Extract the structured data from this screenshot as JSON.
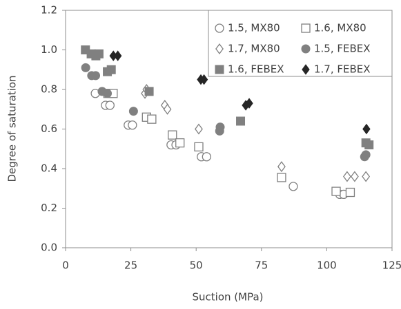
{
  "chart_data": {
    "type": "scatter",
    "x_label": "Suction (MPa)",
    "y_label": "Degree of saturation",
    "xlim": [
      0,
      125
    ],
    "xticks": [
      0,
      25,
      50,
      75,
      100,
      125
    ],
    "ylim": [
      0,
      1.2
    ],
    "yticks": [
      {
        "value": 0,
        "label": "0.0"
      },
      {
        "value": 0.2,
        "label": "0.2"
      },
      {
        "value": 0.4,
        "label": "0.4"
      },
      {
        "value": 0.6,
        "label": "0.6"
      },
      {
        "value": 0.8,
        "label": "0.8"
      },
      {
        "value": 1.0,
        "label": "1.0"
      },
      {
        "value": 1.2,
        "label": "1.2"
      }
    ],
    "grid": false,
    "legend": "upper right",
    "series": [
      {
        "name": "1.5, MX80",
        "color": "#808080",
        "marker": "circle",
        "filled": false,
        "x": [
          11.4,
          15.3,
          17,
          24,
          25.6,
          40.4,
          42.3,
          52,
          54,
          87.2,
          105,
          106.5
        ],
        "values": [
          0.78,
          0.72,
          0.72,
          0.62,
          0.62,
          0.52,
          0.52,
          0.46,
          0.46,
          0.31,
          0.27,
          0.27
        ]
      },
      {
        "name": "1.6, MX80",
        "color": "#808080",
        "marker": "square",
        "filled": false,
        "x": [
          16.2,
          18.2,
          31,
          33,
          40.9,
          43.8,
          51,
          82.7,
          103.6,
          109
        ],
        "values": [
          0.78,
          0.78,
          0.66,
          0.65,
          0.57,
          0.53,
          0.51,
          0.355,
          0.285,
          0.28
        ]
      },
      {
        "name": "1.7, MX80",
        "color": "#808080",
        "marker": "diamond",
        "filled": false,
        "x": [
          30.4,
          31,
          38,
          39,
          51,
          82.7,
          107.8,
          110.7,
          115
        ],
        "values": [
          0.78,
          0.8,
          0.72,
          0.7,
          0.6,
          0.41,
          0.36,
          0.36,
          0.36
        ]
      },
      {
        "name": "1.5, FEBEX",
        "color": "#808080",
        "marker": "circle",
        "filled": true,
        "x": [
          7.7,
          10,
          11.5,
          14,
          16,
          26,
          59,
          59.2,
          114.5,
          115
        ],
        "values": [
          0.91,
          0.87,
          0.87,
          0.79,
          0.78,
          0.69,
          0.59,
          0.61,
          0.46,
          0.47
        ]
      },
      {
        "name": "1.6, FEBEX",
        "color": "#808080",
        "marker": "square",
        "filled": true,
        "x": [
          7.6,
          9.8,
          11.6,
          12.8,
          16,
          17.5,
          32,
          67,
          115,
          116.2
        ],
        "values": [
          1.0,
          0.98,
          0.97,
          0.98,
          0.89,
          0.9,
          0.79,
          0.64,
          0.53,
          0.52
        ]
      },
      {
        "name": "1.7, FEBEX",
        "color": "#262626",
        "marker": "diamond",
        "filled": true,
        "x": [
          18.3,
          20,
          51.8,
          53,
          69,
          70.3,
          115.2
        ],
        "values": [
          0.97,
          0.97,
          0.85,
          0.85,
          0.72,
          0.73,
          0.6
        ]
      }
    ]
  }
}
